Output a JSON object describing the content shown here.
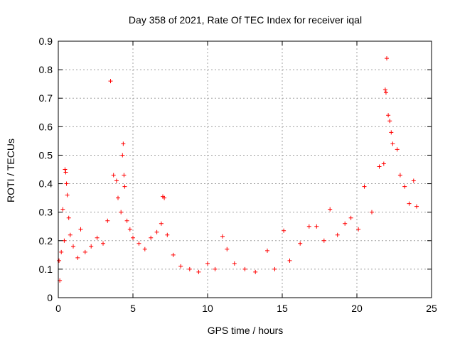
{
  "chart_data": {
    "type": "scatter",
    "title": "Day 358 of 2021, Rate Of TEC Index for receiver iqal",
    "xlabel": "GPS time / hours",
    "ylabel": "ROTI / TECUs",
    "xlim": [
      0,
      25
    ],
    "ylim": [
      0,
      0.9
    ],
    "xticks": [
      0,
      5,
      10,
      15,
      20,
      25
    ],
    "yticks": [
      0,
      0.1,
      0.2,
      0.3,
      0.4,
      0.5,
      0.6,
      0.7,
      0.8,
      0.9
    ],
    "grid": true,
    "marker": "+",
    "series": [
      {
        "color": "#ff0000",
        "points": [
          [
            0.05,
            0.13
          ],
          [
            0.1,
            0.06
          ],
          [
            0.2,
            0.16
          ],
          [
            0.3,
            0.31
          ],
          [
            0.4,
            0.2
          ],
          [
            0.45,
            0.45
          ],
          [
            0.5,
            0.44
          ],
          [
            0.55,
            0.4
          ],
          [
            0.6,
            0.36
          ],
          [
            0.7,
            0.28
          ],
          [
            0.8,
            0.22
          ],
          [
            1.0,
            0.18
          ],
          [
            1.3,
            0.14
          ],
          [
            1.5,
            0.24
          ],
          [
            1.8,
            0.16
          ],
          [
            2.2,
            0.18
          ],
          [
            2.6,
            0.21
          ],
          [
            3.0,
            0.19
          ],
          [
            3.3,
            0.27
          ],
          [
            3.5,
            0.76
          ],
          [
            3.7,
            0.43
          ],
          [
            3.9,
            0.41
          ],
          [
            4.0,
            0.35
          ],
          [
            4.2,
            0.3
          ],
          [
            4.3,
            0.5
          ],
          [
            4.35,
            0.54
          ],
          [
            4.4,
            0.43
          ],
          [
            4.45,
            0.39
          ],
          [
            4.6,
            0.27
          ],
          [
            4.8,
            0.24
          ],
          [
            5.0,
            0.21
          ],
          [
            5.4,
            0.19
          ],
          [
            5.8,
            0.17
          ],
          [
            6.2,
            0.21
          ],
          [
            6.6,
            0.23
          ],
          [
            6.9,
            0.26
          ],
          [
            7.0,
            0.355
          ],
          [
            7.1,
            0.35
          ],
          [
            7.3,
            0.22
          ],
          [
            7.7,
            0.15
          ],
          [
            8.2,
            0.11
          ],
          [
            8.8,
            0.1
          ],
          [
            9.4,
            0.09
          ],
          [
            10.0,
            0.12
          ],
          [
            10.5,
            0.1
          ],
          [
            11.0,
            0.215
          ],
          [
            11.3,
            0.17
          ],
          [
            11.8,
            0.12
          ],
          [
            12.5,
            0.1
          ],
          [
            13.2,
            0.09
          ],
          [
            14.0,
            0.165
          ],
          [
            14.5,
            0.1
          ],
          [
            15.1,
            0.235
          ],
          [
            15.5,
            0.13
          ],
          [
            16.2,
            0.19
          ],
          [
            16.8,
            0.25
          ],
          [
            17.3,
            0.25
          ],
          [
            17.8,
            0.2
          ],
          [
            18.2,
            0.31
          ],
          [
            18.7,
            0.22
          ],
          [
            19.2,
            0.26
          ],
          [
            19.6,
            0.28
          ],
          [
            20.1,
            0.24
          ],
          [
            20.5,
            0.39
          ],
          [
            21.0,
            0.3
          ],
          [
            21.5,
            0.46
          ],
          [
            21.8,
            0.47
          ],
          [
            21.9,
            0.73
          ],
          [
            21.95,
            0.72
          ],
          [
            22.0,
            0.84
          ],
          [
            22.1,
            0.64
          ],
          [
            22.2,
            0.62
          ],
          [
            22.3,
            0.58
          ],
          [
            22.4,
            0.54
          ],
          [
            22.7,
            0.52
          ],
          [
            22.9,
            0.43
          ],
          [
            23.2,
            0.39
          ],
          [
            23.5,
            0.33
          ],
          [
            23.8,
            0.41
          ],
          [
            24.0,
            0.32
          ]
        ]
      }
    ]
  }
}
